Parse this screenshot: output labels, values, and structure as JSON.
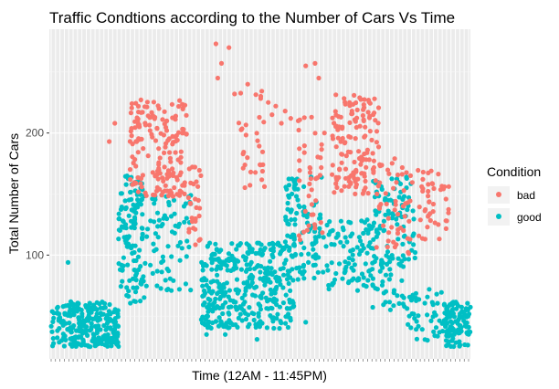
{
  "chart_data": {
    "type": "scatter",
    "title": "Traffic Condtions according to the Number of Cars Vs Time",
    "xlabel": "Time (12AM - 11:45PM)",
    "ylabel": "Total Number of Cars",
    "ylim": [
      15,
      285
    ],
    "y_ticks": [
      100,
      200
    ],
    "x_labels_shown": false,
    "grid": true,
    "legend": {
      "title": "Condition",
      "position": "right",
      "items": [
        {
          "label": "bad",
          "color": "#F8766D"
        },
        {
          "label": "good",
          "color": "#00BFC4"
        }
      ]
    },
    "series": [
      {
        "name": "bad",
        "color": "#F8766D",
        "blocks": [
          {
            "x": [
              4.2,
              7.3
            ],
            "y": [
              148,
              228
            ]
          },
          {
            "x": [
              7.3,
              8.0
            ],
            "y": [
              108,
              175
            ]
          },
          {
            "x": [
              10.0,
              11.5
            ],
            "y": [
              150,
              248
            ]
          },
          {
            "x": [
              13.2,
              14.5
            ],
            "y": [
              110,
              215
            ]
          },
          {
            "x": [
              15.0,
              17.5
            ],
            "y": [
              150,
              232
            ]
          },
          {
            "x": [
              17.3,
              19.3
            ],
            "y": [
              100,
              180
            ]
          },
          {
            "x": [
              19.6,
              21.3
            ],
            "y": [
              110,
              172
            ]
          }
        ],
        "scattered": [
          [
            8.8,
            273
          ],
          [
            9.5,
            270
          ],
          [
            9.1,
            257
          ],
          [
            8.9,
            245
          ],
          [
            10.5,
            240
          ],
          [
            9.8,
            232
          ],
          [
            11.2,
            230
          ],
          [
            11.6,
            225
          ],
          [
            12.0,
            222
          ],
          [
            12.5,
            218
          ],
          [
            12.8,
            212
          ],
          [
            13.2,
            210
          ],
          [
            14.3,
            245
          ],
          [
            13.6,
            255
          ],
          [
            14.1,
            257
          ],
          [
            3.1,
            193
          ],
          [
            3.4,
            208
          ],
          [
            14.6,
            200
          ],
          [
            11.8,
            215
          ],
          [
            12.3,
            208
          ]
        ],
        "counts": [
          170,
          30,
          30,
          40,
          140,
          50,
          45
        ]
      },
      {
        "name": "good",
        "color": "#00BFC4",
        "blocks": [
          {
            "x": [
              0.0,
              3.6
            ],
            "y": [
              25,
              62
            ]
          },
          {
            "x": [
              3.6,
              5.0
            ],
            "y": [
              60,
              165
            ]
          },
          {
            "x": [
              5.0,
              7.5
            ],
            "y": [
              70,
              150
            ]
          },
          {
            "x": [
              8.0,
              10.0
            ],
            "y": [
              40,
              110
            ]
          },
          {
            "x": [
              10.0,
              13.0
            ],
            "y": [
              40,
              110
            ]
          },
          {
            "x": [
              12.5,
              14.5
            ],
            "y": [
              80,
              165
            ]
          },
          {
            "x": [
              14.5,
              17.2
            ],
            "y": [
              70,
              130
            ]
          },
          {
            "x": [
              17.2,
              19.5
            ],
            "y": [
              90,
              165
            ]
          },
          {
            "x": [
              17.0,
              18.8
            ],
            "y": [
              55,
              100
            ]
          },
          {
            "x": [
              18.8,
              21.0
            ],
            "y": [
              30,
              70
            ]
          },
          {
            "x": [
              21.0,
              22.4
            ],
            "y": [
              25,
              62
            ]
          }
        ],
        "scattered": [
          [
            0.9,
            94
          ],
          [
            6.0,
            130
          ],
          [
            6.6,
            118
          ],
          [
            7.1,
            140
          ],
          [
            8.3,
            35
          ],
          [
            9.3,
            35
          ],
          [
            13.6,
            45
          ],
          [
            11.0,
            31
          ],
          [
            12.2,
            40
          ],
          [
            20.2,
            72
          ],
          [
            20.6,
            68
          ]
        ],
        "counts": [
          260,
          130,
          70,
          160,
          200,
          110,
          90,
          90,
          40,
          45,
          110
        ]
      }
    ]
  }
}
